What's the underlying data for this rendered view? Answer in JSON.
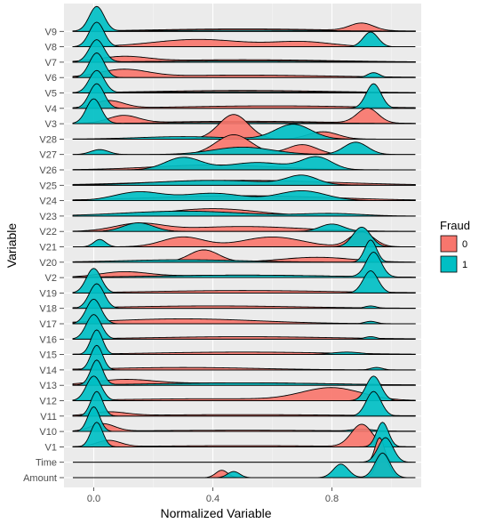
{
  "chart_data": {
    "type": "ridgeline",
    "xlabel": "Normalized Variable",
    "ylabel": "Variable",
    "xlim": [
      -0.1,
      1.1
    ],
    "x_ticks": [
      "0.0",
      "0.4",
      "0.8"
    ],
    "x_tick_values": [
      0.0,
      0.4,
      0.8
    ],
    "grid": true,
    "legend": {
      "title": "Fraud",
      "position": "right",
      "entries": [
        {
          "label": "0",
          "color": "#F8766D"
        },
        {
          "label": "1",
          "color": "#00BFC4"
        }
      ]
    },
    "ridge_scale": 1.6,
    "variables": [
      {
        "name": "Amount",
        "series": {
          "0": [
            [
              0.43,
              0.02,
              0.3
            ],
            [
              0.97,
              0.02,
              1.0
            ]
          ],
          "1": [
            [
              0.47,
              0.02,
              0.25
            ],
            [
              0.83,
              0.025,
              0.55
            ],
            [
              0.97,
              0.025,
              1.0
            ]
          ]
        }
      },
      {
        "name": "Time",
        "series": {
          "0": [
            [
              0.96,
              0.015,
              1.0
            ]
          ],
          "1": [
            [
              0.98,
              0.025,
              1.0
            ]
          ]
        }
      },
      {
        "name": "V1",
        "series": {
          "0": [
            [
              0.05,
              0.04,
              0.25
            ],
            [
              0.5,
              0.3,
              0.05
            ],
            [
              0.9,
              0.035,
              0.9
            ]
          ],
          "1": [
            [
              0.01,
              0.02,
              1.0
            ],
            [
              0.97,
              0.02,
              1.0
            ]
          ]
        }
      },
      {
        "name": "V10",
        "series": {
          "0": [
            [
              0.03,
              0.04,
              0.3
            ],
            [
              0.5,
              0.35,
              0.05
            ]
          ],
          "1": [
            [
              0.0,
              0.02,
              1.0
            ],
            [
              0.9,
              0.04,
              0.1
            ]
          ]
        }
      },
      {
        "name": "V11",
        "series": {
          "0": [
            [
              0.05,
              0.06,
              0.15
            ],
            [
              0.5,
              0.35,
              0.06
            ]
          ],
          "1": [
            [
              0.01,
              0.02,
              1.0
            ],
            [
              0.94,
              0.025,
              1.0
            ]
          ]
        }
      },
      {
        "name": "V12",
        "series": {
          "0": [
            [
              0.8,
              0.1,
              0.5
            ],
            [
              0.4,
              0.3,
              0.08
            ]
          ],
          "1": [
            [
              0.0,
              0.025,
              1.0
            ],
            [
              0.94,
              0.025,
              1.0
            ]
          ]
        }
      },
      {
        "name": "V13",
        "series": {
          "0": [
            [
              0.1,
              0.1,
              0.2
            ],
            [
              0.5,
              0.3,
              0.1
            ]
          ],
          "1": [
            [
              0.01,
              0.02,
              1.0
            ],
            [
              0.5,
              0.3,
              0.1
            ]
          ]
        }
      },
      {
        "name": "V14",
        "series": {
          "0": [
            [
              0.3,
              0.25,
              0.1
            ]
          ],
          "1": [
            [
              0.01,
              0.02,
              1.0
            ],
            [
              0.95,
              0.02,
              0.1
            ]
          ]
        }
      },
      {
        "name": "V15",
        "series": {
          "0": [
            [
              0.5,
              0.3,
              0.1
            ]
          ],
          "1": [
            [
              0.01,
              0.02,
              1.0
            ],
            [
              0.85,
              0.05,
              0.1
            ]
          ]
        }
      },
      {
        "name": "V16",
        "series": {
          "0": [
            [
              0.5,
              0.3,
              0.1
            ]
          ],
          "1": [
            [
              0.0,
              0.025,
              1.0
            ],
            [
              0.93,
              0.02,
              0.1
            ]
          ]
        }
      },
      {
        "name": "V17",
        "series": {
          "0": [
            [
              0.3,
              0.25,
              0.2
            ]
          ],
          "1": [
            [
              0.0,
              0.025,
              1.0
            ],
            [
              0.93,
              0.02,
              0.1
            ]
          ]
        }
      },
      {
        "name": "V18",
        "series": {
          "0": [
            [
              0.4,
              0.3,
              0.1
            ]
          ],
          "1": [
            [
              0.01,
              0.025,
              1.0
            ],
            [
              0.93,
              0.02,
              0.1
            ]
          ]
        }
      },
      {
        "name": "V19",
        "series": {
          "0": [
            [
              0.5,
              0.3,
              0.1
            ]
          ],
          "1": [
            [
              0.0,
              0.025,
              1.0
            ],
            [
              0.93,
              0.025,
              0.9
            ]
          ]
        }
      },
      {
        "name": "V2",
        "series": {
          "0": [
            [
              0.1,
              0.08,
              0.2
            ],
            [
              0.5,
              0.3,
              0.1
            ]
          ],
          "1": [
            [
              0.5,
              0.3,
              0.1
            ],
            [
              0.94,
              0.025,
              1.0
            ]
          ]
        }
      },
      {
        "name": "V20",
        "series": {
          "0": [
            [
              0.37,
              0.05,
              0.5
            ],
            [
              0.75,
              0.12,
              0.2
            ]
          ],
          "1": [
            [
              0.3,
              0.2,
              0.1
            ],
            [
              0.93,
              0.02,
              0.9
            ]
          ]
        }
      },
      {
        "name": "V21",
        "series": {
          "0": [
            [
              0.3,
              0.07,
              0.4
            ],
            [
              0.6,
              0.1,
              0.4
            ],
            [
              0.9,
              0.04,
              0.6
            ]
          ],
          "1": [
            [
              0.02,
              0.02,
              0.3
            ],
            [
              0.9,
              0.03,
              0.8
            ]
          ]
        }
      },
      {
        "name": "V22",
        "series": {
          "0": [
            [
              0.15,
              0.08,
              0.3
            ],
            [
              0.5,
              0.2,
              0.2
            ]
          ],
          "1": [
            [
              0.15,
              0.05,
              0.35
            ],
            [
              0.8,
              0.04,
              0.3
            ]
          ]
        }
      },
      {
        "name": "V23",
        "series": {
          "0": [
            [
              0.4,
              0.15,
              0.3
            ]
          ],
          "1": [
            [
              0.3,
              0.2,
              0.2
            ],
            [
              0.8,
              0.1,
              0.1
            ]
          ]
        }
      },
      {
        "name": "V24",
        "series": {
          "0": [
            [
              0.5,
              0.3,
              0.2
            ]
          ],
          "1": [
            [
              0.15,
              0.08,
              0.35
            ],
            [
              0.4,
              0.1,
              0.3
            ],
            [
              0.7,
              0.08,
              0.4
            ]
          ]
        }
      },
      {
        "name": "V25",
        "series": {
          "0": [
            [
              0.5,
              0.3,
              0.2
            ]
          ],
          "1": [
            [
              0.4,
              0.2,
              0.2
            ],
            [
              0.7,
              0.05,
              0.35
            ]
          ]
        }
      },
      {
        "name": "V26",
        "series": {
          "0": [
            [
              0.4,
              0.2,
              0.2
            ]
          ],
          "1": [
            [
              0.3,
              0.06,
              0.5
            ],
            [
              0.55,
              0.1,
              0.3
            ],
            [
              0.75,
              0.05,
              0.5
            ]
          ]
        }
      },
      {
        "name": "V27",
        "series": {
          "0": [
            [
              0.47,
              0.06,
              0.8
            ],
            [
              0.7,
              0.05,
              0.4
            ]
          ],
          "1": [
            [
              0.02,
              0.03,
              0.2
            ],
            [
              0.5,
              0.1,
              0.3
            ],
            [
              0.88,
              0.04,
              0.5
            ]
          ]
        }
      },
      {
        "name": "V28",
        "series": {
          "0": [
            [
              0.47,
              0.05,
              1.0
            ],
            [
              0.77,
              0.05,
              0.3
            ]
          ],
          "1": [
            [
              0.3,
              0.15,
              0.1
            ],
            [
              0.67,
              0.06,
              0.6
            ]
          ]
        }
      },
      {
        "name": "V3",
        "series": {
          "0": [
            [
              0.1,
              0.05,
              0.3
            ],
            [
              0.5,
              0.3,
              0.1
            ],
            [
              0.92,
              0.035,
              0.6
            ]
          ],
          "1": [
            [
              0.0,
              0.025,
              1.0
            ],
            [
              0.5,
              0.3,
              0.05
            ]
          ]
        }
      },
      {
        "name": "V4",
        "series": {
          "0": [
            [
              0.05,
              0.05,
              0.3
            ],
            [
              0.6,
              0.3,
              0.1
            ]
          ],
          "1": [
            [
              0.01,
              0.025,
              1.0
            ],
            [
              0.94,
              0.025,
              1.0
            ]
          ]
        }
      },
      {
        "name": "V5",
        "series": {
          "0": [
            [
              0.5,
              0.3,
              0.1
            ]
          ],
          "1": [
            [
              0.01,
              0.025,
              0.9
            ],
            [
              0.5,
              0.3,
              0.05
            ]
          ]
        }
      },
      {
        "name": "V6",
        "series": {
          "0": [
            [
              0.1,
              0.08,
              0.3
            ],
            [
              0.5,
              0.3,
              0.1
            ]
          ],
          "1": [
            [
              0.01,
              0.025,
              1.0
            ],
            [
              0.94,
              0.02,
              0.2
            ]
          ]
        }
      },
      {
        "name": "V7",
        "series": {
          "0": [
            [
              0.1,
              0.08,
              0.2
            ],
            [
              0.5,
              0.3,
              0.1
            ]
          ],
          "1": [
            [
              0.01,
              0.025,
              0.9
            ],
            [
              0.5,
              0.3,
              0.05
            ]
          ]
        }
      },
      {
        "name": "V8",
        "series": {
          "0": [
            [
              0.35,
              0.15,
              0.3
            ],
            [
              0.7,
              0.1,
              0.2
            ]
          ],
          "1": [
            [
              0.01,
              0.025,
              1.0
            ],
            [
              0.93,
              0.025,
              0.6
            ]
          ]
        }
      },
      {
        "name": "V9",
        "series": {
          "0": [
            [
              0.5,
              0.3,
              0.1
            ],
            [
              0.9,
              0.04,
              0.3
            ]
          ],
          "1": [
            [
              0.01,
              0.025,
              1.0
            ],
            [
              0.5,
              0.3,
              0.05
            ]
          ]
        }
      }
    ]
  }
}
